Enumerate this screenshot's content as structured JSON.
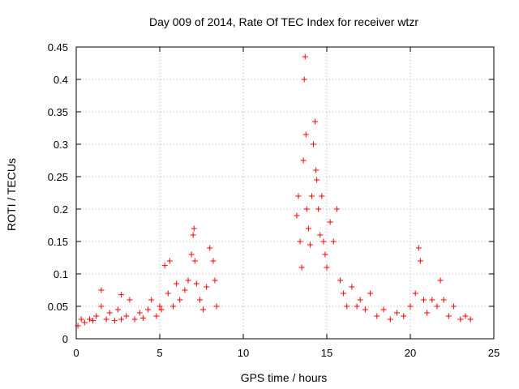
{
  "chart_data": {
    "type": "scatter",
    "title": "Day 009 of 2014, Rate Of TEC Index for receiver wtzr",
    "xlabel": "GPS time / hours",
    "ylabel": "ROTI / TECUs",
    "xlim": [
      0,
      25
    ],
    "ylim": [
      0,
      0.45
    ],
    "xticks": [
      0,
      5,
      10,
      15,
      20,
      25
    ],
    "xtick_labels": [
      "0",
      "5",
      "10",
      "15",
      "20",
      "25"
    ],
    "yticks": [
      0,
      0.05,
      0.1,
      0.15,
      0.2,
      0.25,
      0.3,
      0.35,
      0.4,
      0.45
    ],
    "ytick_labels": [
      "0",
      "0.05",
      "0.1",
      "0.15",
      "0.2",
      "0.25",
      "0.3",
      "0.35",
      "0.4",
      "0.45"
    ],
    "grid": true,
    "marker": "+",
    "color": "#ff0000",
    "series": [
      {
        "name": "ROTI",
        "x": [
          0.1,
          0.3,
          0.5,
          0.8,
          1.0,
          1.2,
          1.5,
          1.5,
          1.8,
          2.0,
          2.3,
          2.5,
          2.7,
          2.7,
          3.0,
          3.2,
          3.5,
          3.8,
          4.0,
          4.3,
          4.5,
          4.8,
          5.0,
          5.1,
          5.3,
          5.5,
          5.6,
          5.8,
          6.0,
          6.2,
          6.5,
          6.7,
          6.9,
          7.0,
          7.05,
          7.1,
          7.2,
          7.4,
          7.6,
          7.8,
          8.0,
          8.2,
          8.3,
          8.4,
          13.2,
          13.3,
          13.4,
          13.5,
          13.6,
          13.65,
          13.7,
          13.75,
          13.8,
          13.9,
          14.0,
          14.1,
          14.2,
          14.3,
          14.35,
          14.4,
          14.5,
          14.6,
          14.7,
          14.8,
          14.9,
          15.0,
          15.2,
          15.4,
          15.6,
          15.8,
          16.0,
          16.2,
          16.5,
          16.8,
          17.0,
          17.3,
          17.6,
          18.0,
          18.4,
          18.8,
          19.2,
          19.6,
          20.0,
          20.3,
          20.5,
          20.6,
          20.8,
          21.0,
          21.3,
          21.6,
          21.8,
          22.0,
          22.3,
          22.6,
          23.0,
          23.3,
          23.6
        ],
        "y": [
          0.02,
          0.03,
          0.025,
          0.03,
          0.028,
          0.035,
          0.075,
          0.05,
          0.03,
          0.04,
          0.028,
          0.045,
          0.068,
          0.03,
          0.035,
          0.06,
          0.03,
          0.04,
          0.032,
          0.045,
          0.06,
          0.035,
          0.05,
          0.045,
          0.113,
          0.07,
          0.12,
          0.05,
          0.085,
          0.06,
          0.075,
          0.09,
          0.13,
          0.16,
          0.17,
          0.12,
          0.085,
          0.06,
          0.045,
          0.08,
          0.14,
          0.12,
          0.09,
          0.05,
          0.19,
          0.22,
          0.15,
          0.11,
          0.275,
          0.4,
          0.435,
          0.315,
          0.2,
          0.17,
          0.145,
          0.22,
          0.3,
          0.335,
          0.26,
          0.245,
          0.2,
          0.16,
          0.22,
          0.15,
          0.13,
          0.11,
          0.18,
          0.15,
          0.2,
          0.09,
          0.07,
          0.05,
          0.08,
          0.05,
          0.06,
          0.045,
          0.07,
          0.035,
          0.045,
          0.03,
          0.04,
          0.035,
          0.05,
          0.07,
          0.14,
          0.12,
          0.06,
          0.04,
          0.06,
          0.05,
          0.09,
          0.06,
          0.035,
          0.05,
          0.03,
          0.035,
          0.03
        ]
      }
    ]
  }
}
